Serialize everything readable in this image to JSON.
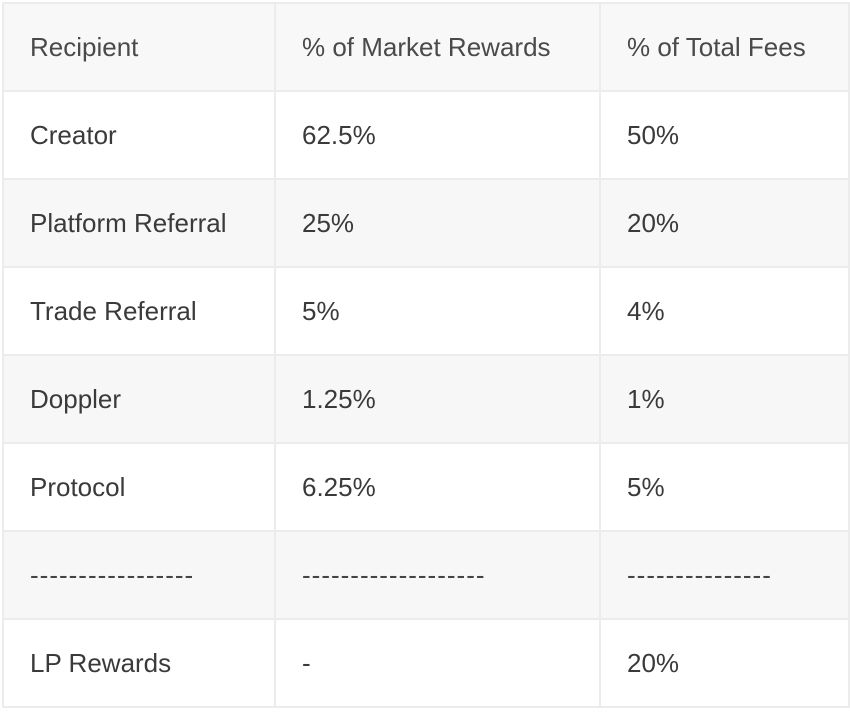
{
  "table": {
    "headers": [
      "Recipient",
      "% of Market Rewards",
      "% of Total Fees"
    ],
    "rows": [
      [
        "Creator",
        "62.5%",
        "50%"
      ],
      [
        "Platform Referral",
        "25%",
        "20%"
      ],
      [
        "Trade Referral",
        "5%",
        "4%"
      ],
      [
        "Doppler",
        "1.25%",
        "1%"
      ],
      [
        "Protocol",
        "6.25%",
        "5%"
      ],
      [
        "-----------------",
        "-------------------",
        "---------------"
      ],
      [
        "LP Rewards",
        "-",
        "20%"
      ]
    ]
  }
}
